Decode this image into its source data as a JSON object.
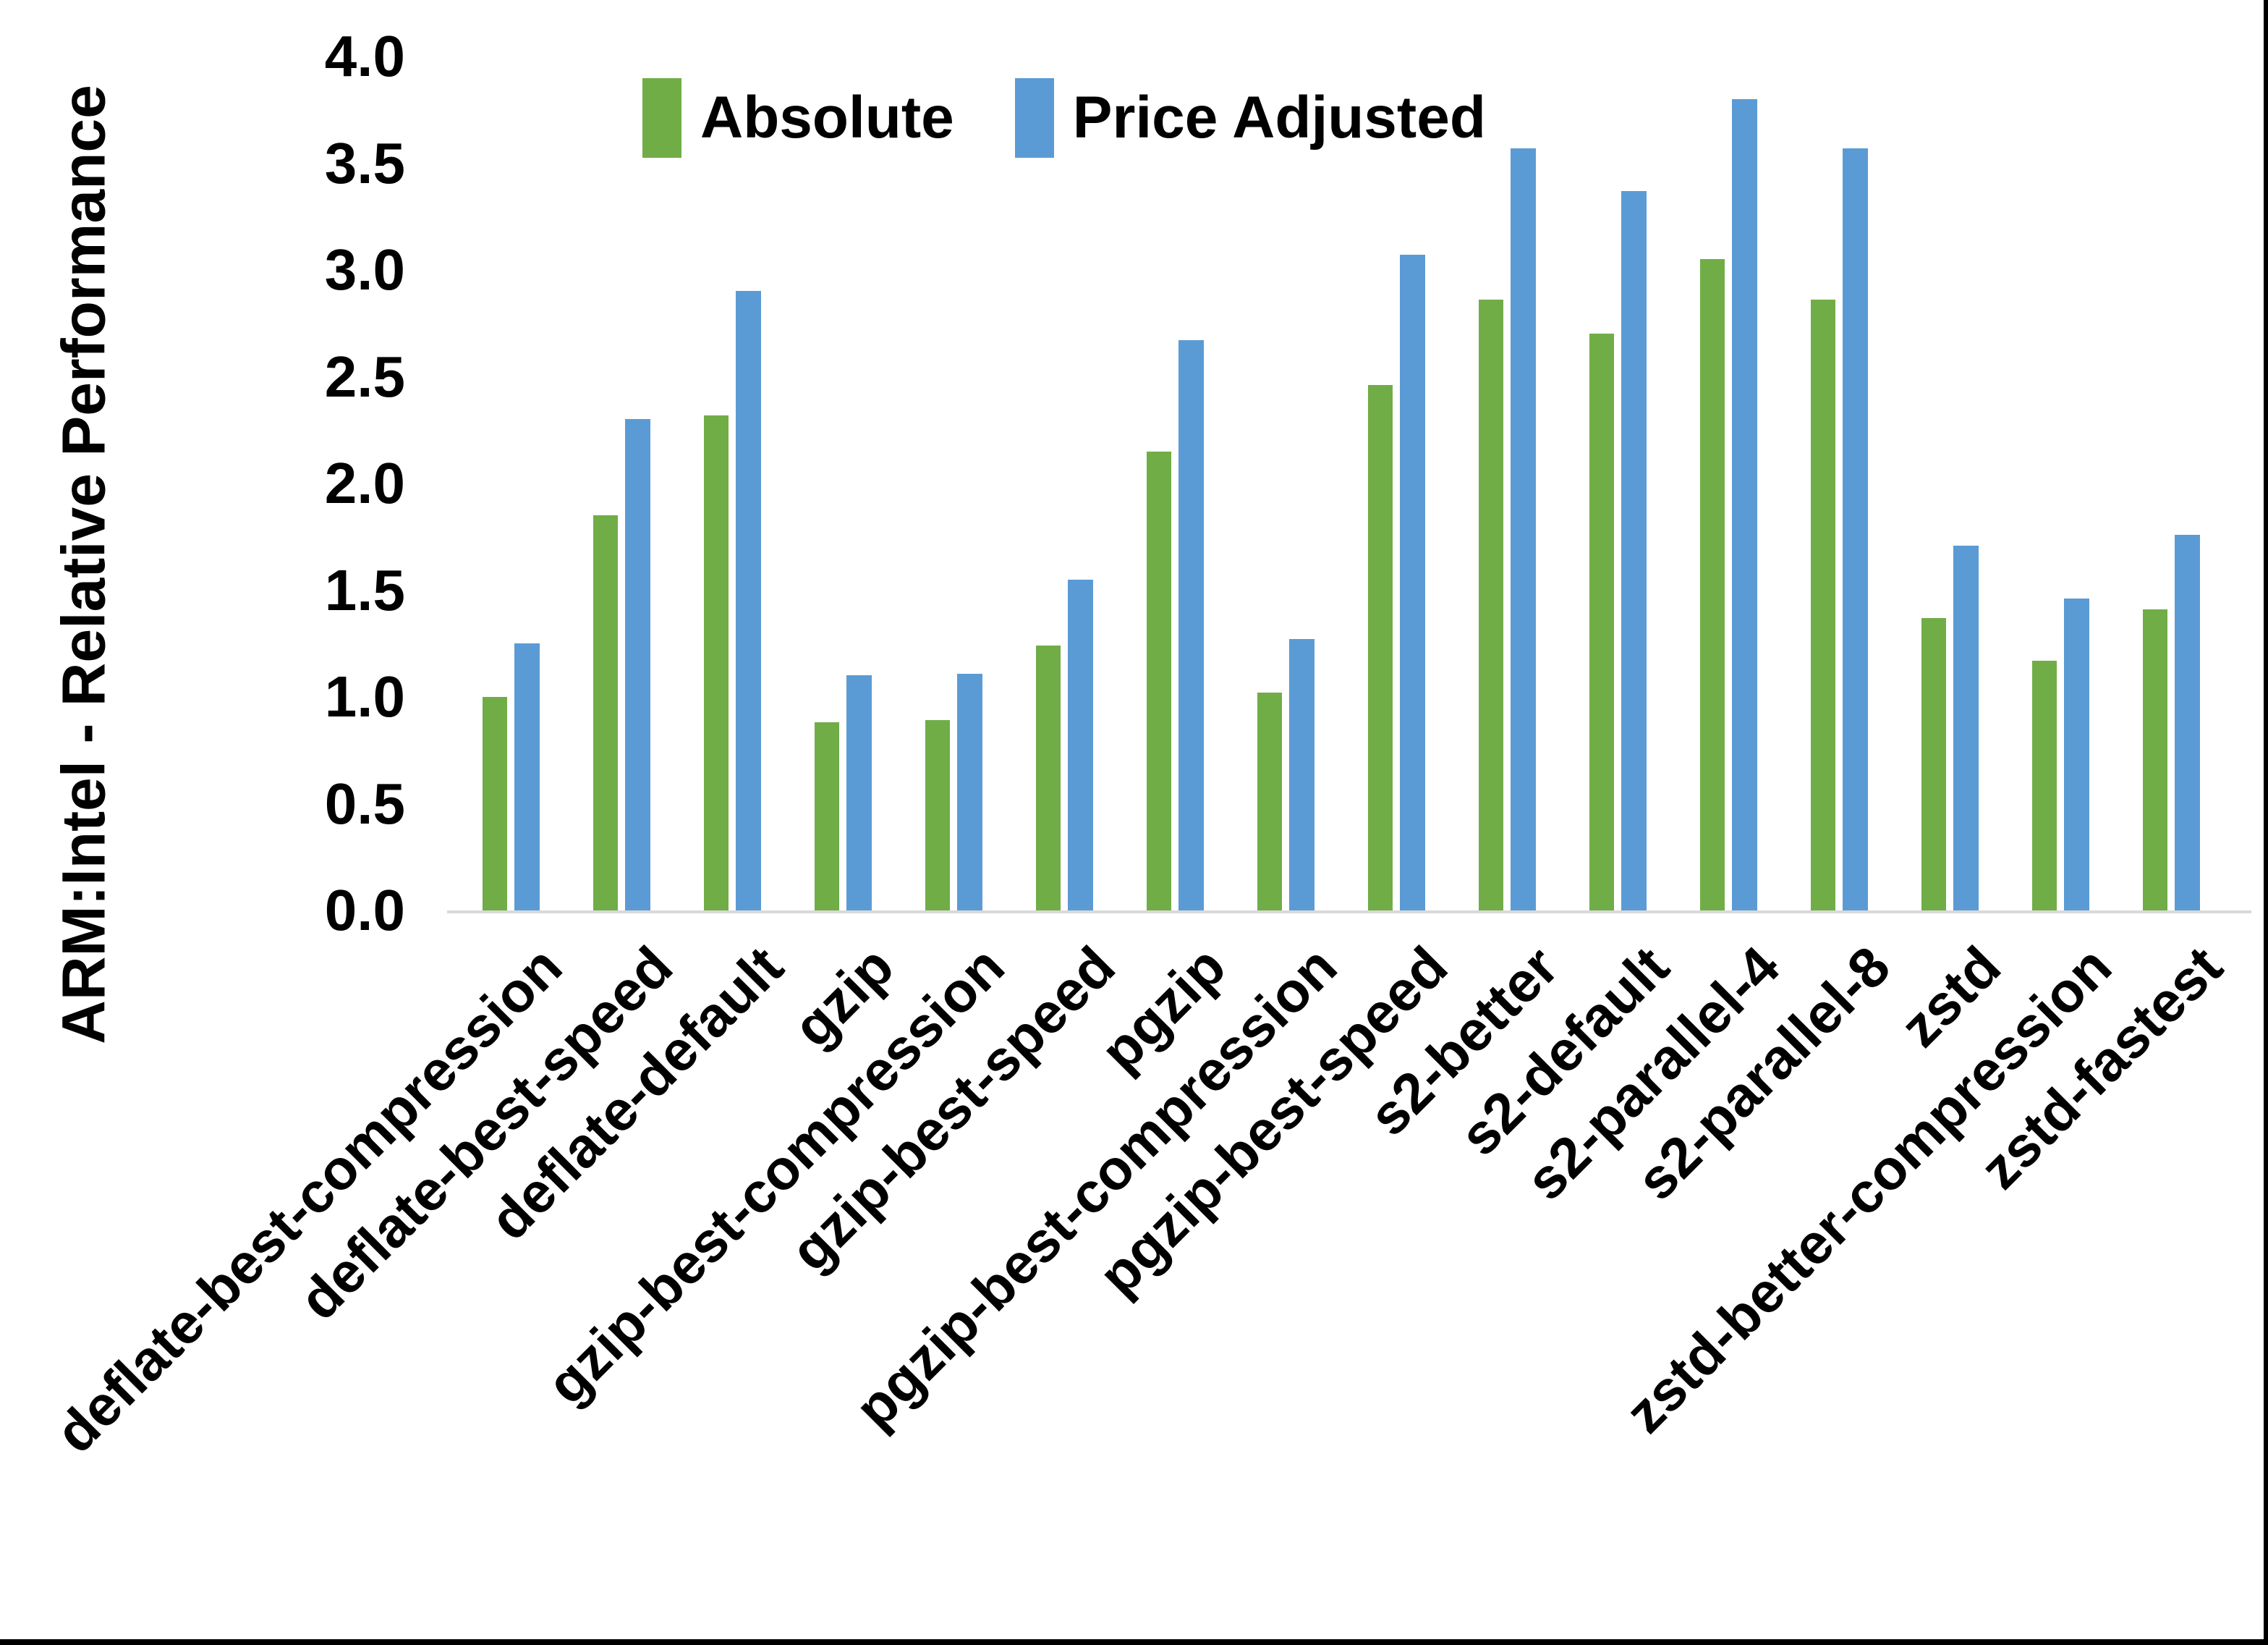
{
  "window": {
    "background": "#ffffff",
    "edge_color": "#000000"
  },
  "legend": {
    "items": [
      {
        "label": "Absolute",
        "color": "#70AD47"
      },
      {
        "label": "Price Adjusted",
        "color": "#5B9BD5"
      }
    ]
  },
  "chart_data": {
    "type": "bar",
    "title": "",
    "xlabel": "",
    "ylabel": "ARM:Intel - Relative Performance",
    "ylim": [
      0,
      4.0
    ],
    "ytick_step": 0.5,
    "ytick_labels": [
      "0.0",
      "0.5",
      "1.0",
      "1.5",
      "2.0",
      "2.5",
      "3.0",
      "3.5",
      "4.0"
    ],
    "grid": false,
    "legend_position": "top-center",
    "axis_line_color": "#D9D9D9",
    "categories": [
      "deflate-best-compression",
      "deflate-best-speed",
      "deflate-default",
      "gzip",
      "gzip-best-compression",
      "gzip-best-speed",
      "pgzip",
      "pgzip-best-compression",
      "pgzip-best-speed",
      "s2-better",
      "s2-default",
      "s2-parallel-4",
      "s2-parallel-8",
      "zstd",
      "zstd-better-compression",
      "zstd-fastest"
    ],
    "series": [
      {
        "name": "Absolute",
        "color": "#70AD47",
        "values": [
          1.0,
          1.85,
          2.32,
          0.88,
          0.89,
          1.24,
          2.15,
          1.02,
          2.46,
          2.86,
          2.7,
          3.05,
          2.86,
          1.37,
          1.17,
          1.41
        ]
      },
      {
        "name": "Price Adjusted",
        "color": "#5B9BD5",
        "values": [
          1.25,
          2.3,
          2.9,
          1.1,
          1.11,
          1.55,
          2.67,
          1.27,
          3.07,
          3.57,
          3.37,
          3.8,
          3.57,
          1.71,
          1.46,
          1.76
        ]
      }
    ]
  }
}
